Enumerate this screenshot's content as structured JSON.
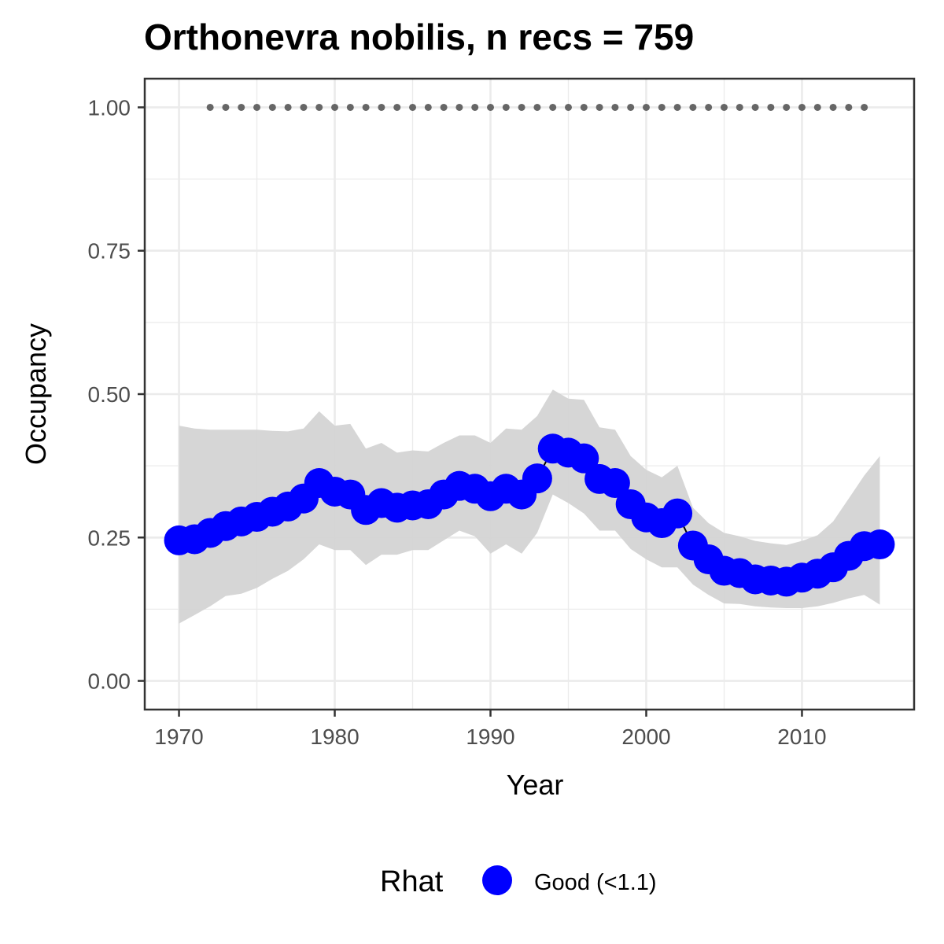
{
  "chart_data": {
    "type": "line",
    "title": "Orthonevra nobilis, n recs = 759",
    "xlabel": "Year",
    "ylabel": "Occupancy",
    "xlim": [
      1967.8,
      2017.2
    ],
    "ylim": [
      -0.05,
      1.05
    ],
    "x_ticks": [
      1970,
      1980,
      1990,
      2000,
      2010
    ],
    "x_tick_labels": [
      "1970",
      "1980",
      "1990",
      "2000",
      "2010"
    ],
    "y_ticks": [
      0,
      0.25,
      0.5,
      0.75,
      1.0
    ],
    "y_tick_labels": [
      "0.00",
      "0.25",
      "0.50",
      "0.75",
      "1.00"
    ],
    "grid": true,
    "legend": {
      "title": "Rhat",
      "position": "bottom",
      "entries": [
        {
          "label": "Good (<1.1)",
          "color": "#0000ff"
        }
      ]
    },
    "colors": {
      "points": "#0000ff",
      "ribbon": "#d4d4d4",
      "record_dots": "#666666",
      "gridline": "#ebebeb",
      "panel_border": "#333333"
    },
    "x": [
      1970,
      1971,
      1972,
      1973,
      1974,
      1975,
      1976,
      1977,
      1978,
      1979,
      1980,
      1981,
      1982,
      1983,
      1984,
      1985,
      1986,
      1987,
      1988,
      1989,
      1990,
      1991,
      1992,
      1993,
      1994,
      1995,
      1996,
      1997,
      1998,
      1999,
      2000,
      2001,
      2002,
      2003,
      2004,
      2005,
      2006,
      2007,
      2008,
      2009,
      2010,
      2011,
      2012,
      2013,
      2014,
      2015
    ],
    "series": [
      {
        "values": [
          0.245,
          0.247,
          0.258,
          0.27,
          0.278,
          0.286,
          0.295,
          0.304,
          0.318,
          0.345,
          0.33,
          0.325,
          0.298,
          0.31,
          0.302,
          0.306,
          0.308,
          0.325,
          0.34,
          0.335,
          0.322,
          0.335,
          0.325,
          0.353,
          0.405,
          0.398,
          0.388,
          0.352,
          0.345,
          0.308,
          0.285,
          0.275,
          0.292,
          0.236,
          0.212,
          0.192,
          0.188,
          0.177,
          0.175,
          0.173,
          0.18,
          0.187,
          0.198,
          0.218,
          0.235,
          0.238
        ],
        "lower": [
          0.1,
          0.115,
          0.13,
          0.148,
          0.152,
          0.162,
          0.178,
          0.192,
          0.212,
          0.238,
          0.228,
          0.228,
          0.202,
          0.22,
          0.22,
          0.228,
          0.228,
          0.245,
          0.262,
          0.252,
          0.222,
          0.238,
          0.222,
          0.258,
          0.325,
          0.31,
          0.292,
          0.262,
          0.262,
          0.23,
          0.212,
          0.198,
          0.198,
          0.168,
          0.15,
          0.135,
          0.134,
          0.13,
          0.128,
          0.127,
          0.127,
          0.13,
          0.136,
          0.144,
          0.15,
          0.133
        ],
        "upper": [
          0.445,
          0.44,
          0.438,
          0.438,
          0.438,
          0.438,
          0.436,
          0.435,
          0.44,
          0.47,
          0.445,
          0.448,
          0.405,
          0.415,
          0.398,
          0.402,
          0.4,
          0.415,
          0.428,
          0.428,
          0.415,
          0.44,
          0.438,
          0.462,
          0.508,
          0.492,
          0.49,
          0.442,
          0.438,
          0.392,
          0.368,
          0.355,
          0.375,
          0.302,
          0.275,
          0.258,
          0.252,
          0.244,
          0.24,
          0.237,
          0.244,
          0.254,
          0.278,
          0.318,
          0.358,
          0.392
        ]
      }
    ],
    "record_years": [
      1972,
      1973,
      1974,
      1975,
      1976,
      1977,
      1978,
      1979,
      1980,
      1981,
      1982,
      1983,
      1984,
      1985,
      1986,
      1987,
      1988,
      1989,
      1990,
      1991,
      1992,
      1993,
      1994,
      1995,
      1996,
      1997,
      1998,
      1999,
      2000,
      2001,
      2002,
      2003,
      2004,
      2005,
      2006,
      2007,
      2008,
      2009,
      2010,
      2011,
      2012,
      2013,
      2014
    ],
    "record_value": 1.0
  }
}
